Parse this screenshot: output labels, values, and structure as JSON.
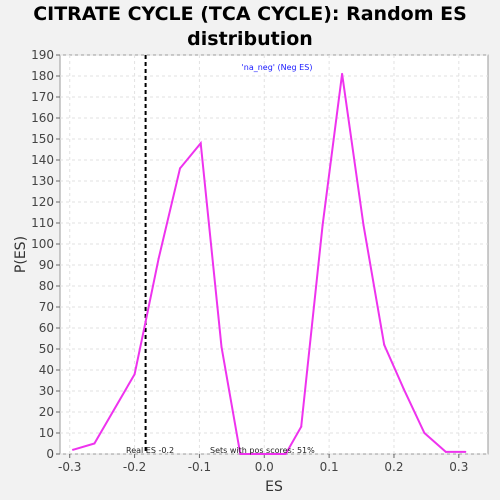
{
  "chart_data": {
    "type": "line",
    "title": "CITRATE CYCLE (TCA CYCLE): Random ES distribution",
    "xlabel": "ES",
    "ylabel": "P(ES)",
    "xlim": [
      -0.315,
      0.345
    ],
    "ylim": [
      0,
      190
    ],
    "x_ticks": [
      -0.3,
      -0.2,
      -0.1,
      0.0,
      0.1,
      0.2,
      0.3
    ],
    "x_tick_labels": [
      "-0.3",
      "-0.2",
      "-0.1",
      "0.0",
      "0.1",
      "0.2",
      "0.3"
    ],
    "y_ticks": [
      0,
      10,
      20,
      30,
      40,
      50,
      60,
      70,
      80,
      90,
      100,
      110,
      120,
      130,
      140,
      150,
      160,
      170,
      180,
      190
    ],
    "grid": true,
    "series": [
      {
        "name": "'na_neg' (Neg ES)",
        "color": "#ee33ee",
        "x": [
          -0.295,
          -0.262,
          -0.2,
          -0.183,
          -0.163,
          -0.13,
          -0.098,
          -0.066,
          -0.037,
          0.0,
          0.033,
          0.057,
          0.09,
          0.12,
          0.153,
          0.185,
          0.215,
          0.247,
          0.28,
          0.31
        ],
        "y": [
          2,
          5,
          38,
          63,
          93,
          136,
          148,
          51,
          0,
          0,
          0,
          13,
          109,
          181,
          109,
          52,
          31,
          10,
          1,
          1
        ]
      }
    ],
    "legend": "top-center",
    "real_es": {
      "value": -0.183,
      "label": "Real ES -0.2"
    },
    "annotations": {
      "pos_scores": "Sets with pos scores: 51%"
    }
  }
}
